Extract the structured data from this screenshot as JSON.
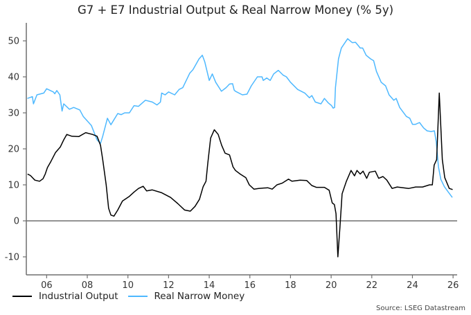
{
  "chart_data": {
    "type": "line",
    "title": "G7 + E7 Industrial Output & Real Narrow Money (% 5y)",
    "xlabel": "",
    "ylabel": "",
    "xlim": [
      2005.0,
      2026.2
    ],
    "ylim": [
      -15,
      55
    ],
    "x_ticks": [
      2006,
      2008,
      2010,
      2012,
      2014,
      2016,
      2018,
      2020,
      2022,
      2024,
      2026
    ],
    "x_tick_labels": [
      "06",
      "08",
      "10",
      "12",
      "14",
      "16",
      "18",
      "20",
      "22",
      "24",
      "26"
    ],
    "y_ticks": [
      -10,
      0,
      10,
      20,
      30,
      40,
      50
    ],
    "y_tick_labels": [
      "-10",
      "0",
      "10",
      "20",
      "30",
      "40",
      "50"
    ],
    "grid": false,
    "zero_line": true,
    "legend": "bottom-left",
    "series": [
      {
        "name": "Industrial Output",
        "color": "#000000",
        "x": [
          2005.06,
          2005.2,
          2005.42,
          2005.65,
          2005.82,
          2005.93,
          2006.04,
          2006.21,
          2006.44,
          2006.67,
          2006.84,
          2006.99,
          2007.24,
          2007.58,
          2007.92,
          2008.26,
          2008.48,
          2008.65,
          2008.76,
          2008.93,
          2009.05,
          2009.16,
          2009.31,
          2009.5,
          2009.73,
          2010.07,
          2010.3,
          2010.52,
          2010.75,
          2010.92,
          2011.2,
          2011.66,
          2012.1,
          2012.45,
          2012.79,
          2013.07,
          2013.3,
          2013.52,
          2013.7,
          2013.84,
          2013.93,
          2014.07,
          2014.25,
          2014.44,
          2014.61,
          2014.78,
          2015.0,
          2015.17,
          2015.29,
          2015.52,
          2015.8,
          2015.97,
          2016.2,
          2016.43,
          2016.88,
          2017.1,
          2017.33,
          2017.6,
          2017.9,
          2018.07,
          2018.47,
          2018.8,
          2019.05,
          2019.27,
          2019.67,
          2019.9,
          2020.05,
          2020.16,
          2020.24,
          2020.33,
          2020.43,
          2020.54,
          2020.75,
          2020.98,
          2021.15,
          2021.27,
          2021.43,
          2021.57,
          2021.75,
          2021.88,
          2022.17,
          2022.34,
          2022.55,
          2022.74,
          2023.0,
          2023.25,
          2023.82,
          2024.16,
          2024.5,
          2024.84,
          2024.98,
          2025.07,
          2025.19,
          2025.32,
          2025.47,
          2025.59,
          2025.81,
          2025.98
        ],
        "y": [
          13,
          12.6,
          11.3,
          11,
          11.7,
          13,
          14.8,
          16.5,
          19,
          20.5,
          22.5,
          24,
          23.5,
          23.4,
          24.5,
          24,
          23.5,
          21,
          17,
          10,
          3.5,
          1.6,
          1.3,
          3,
          5.5,
          6.8,
          8,
          9,
          9.6,
          8.3,
          8.6,
          7.8,
          6.5,
          4.8,
          3,
          2.7,
          4,
          6,
          9.5,
          11,
          16,
          23,
          25.3,
          24,
          21,
          18.8,
          18.3,
          15,
          14,
          13,
          12,
          10,
          8.8,
          9,
          9.2,
          8.8,
          10,
          10.5,
          11.6,
          11,
          11.3,
          11.2,
          9.8,
          9.3,
          9.3,
          8.5,
          5,
          4.5,
          2,
          -10,
          -2,
          7.5,
          11,
          14,
          12.5,
          14,
          13,
          13.8,
          11.8,
          13.5,
          13.8,
          11.8,
          12.3,
          11.3,
          9,
          9.4,
          9,
          9.4,
          9.4,
          10,
          10,
          15.5,
          17,
          35.5,
          17,
          12,
          9,
          8.7
        ]
      },
      {
        "name": "Real Narrow Money",
        "color": "#4db8ff",
        "x": [
          2005.05,
          2005.3,
          2005.35,
          2005.52,
          2005.86,
          2006.0,
          2006.33,
          2006.4,
          2006.5,
          2006.65,
          2006.76,
          2006.84,
          2007.12,
          2007.33,
          2007.63,
          2007.8,
          2008.2,
          2008.48,
          2008.65,
          2008.76,
          2008.99,
          2009.16,
          2009.5,
          2009.67,
          2009.84,
          2010.07,
          2010.3,
          2010.52,
          2010.86,
          2011.2,
          2011.43,
          2011.6,
          2011.66,
          2011.83,
          2012.0,
          2012.3,
          2012.52,
          2012.7,
          2013.04,
          2013.2,
          2013.5,
          2013.66,
          2013.78,
          2014.0,
          2014.15,
          2014.32,
          2014.6,
          2014.83,
          2015.0,
          2015.15,
          2015.23,
          2015.29,
          2015.63,
          2015.86,
          2016.07,
          2016.37,
          2016.6,
          2016.66,
          2016.83,
          2017.0,
          2017.17,
          2017.4,
          2017.63,
          2017.8,
          2018.0,
          2018.35,
          2018.7,
          2018.93,
          2019.05,
          2019.22,
          2019.5,
          2019.67,
          2019.85,
          2020.02,
          2020.1,
          2020.17,
          2020.21,
          2020.36,
          2020.5,
          2020.81,
          2021.04,
          2021.2,
          2021.43,
          2021.55,
          2021.72,
          2021.94,
          2022.09,
          2022.23,
          2022.46,
          2022.68,
          2022.85,
          2023.08,
          2023.2,
          2023.37,
          2023.7,
          2023.87,
          2024.0,
          2024.15,
          2024.35,
          2024.55,
          2024.72,
          2024.92,
          2025.08,
          2025.17,
          2025.28,
          2025.4,
          2025.57,
          2025.74,
          2025.96
        ],
        "y": [
          34,
          34.5,
          32.5,
          35,
          35.5,
          36.7,
          35.8,
          35.3,
          36.2,
          35,
          30.5,
          32.5,
          31,
          31.5,
          30.8,
          29,
          26.5,
          22.5,
          21.5,
          23.5,
          28.5,
          26.7,
          29.8,
          29.5,
          30,
          30,
          32,
          31.8,
          33.5,
          33,
          32.2,
          33,
          35.5,
          35,
          35.8,
          35,
          36.5,
          37,
          41,
          42,
          45,
          46,
          44.2,
          39,
          40.8,
          38.5,
          36,
          37,
          38,
          38.1,
          36.3,
          36,
          35,
          35.2,
          37.5,
          40,
          40,
          39,
          39.7,
          39,
          40.8,
          41.8,
          40.5,
          40,
          38.5,
          36.5,
          35.5,
          34.2,
          34.8,
          33,
          32.5,
          34,
          32.8,
          32,
          31.3,
          31.5,
          37,
          45,
          48,
          50.6,
          49.5,
          49.6,
          48,
          48,
          46,
          45,
          44.5,
          41.5,
          38.5,
          37.5,
          35,
          33.5,
          34,
          31.5,
          29,
          28.5,
          26.8,
          26.8,
          27.3,
          25.8,
          25,
          24.8,
          25,
          22,
          15,
          11.5,
          9.5,
          8.2,
          6.5
        ]
      }
    ],
    "source": "Source: LSEG Datastream"
  }
}
